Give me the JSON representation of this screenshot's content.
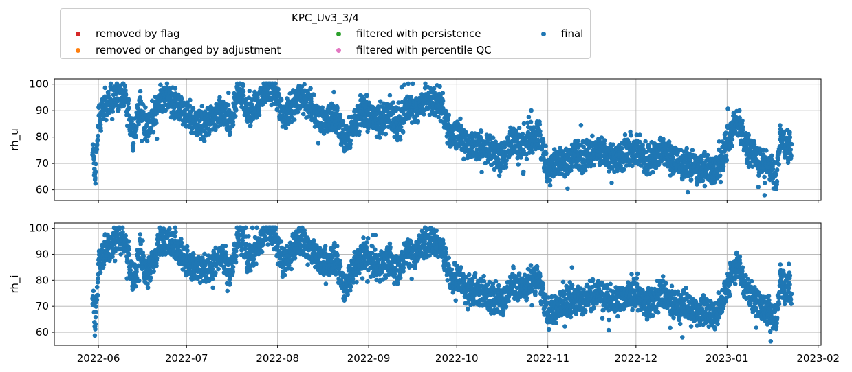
{
  "legend": {
    "title": "KPC_Uv3_3/4",
    "items": [
      {
        "label": "removed by flag",
        "color": "#d62728"
      },
      {
        "label": "removed or changed by adjustment",
        "color": "#ff7f0e"
      },
      {
        "label": "filtered with persistence",
        "color": "#2ca02c"
      },
      {
        "label": "filtered with percentile QC",
        "color": "#e377c2"
      },
      {
        "label": "final",
        "color": "#1f77b4"
      }
    ]
  },
  "chart_data": {
    "type": "scatter",
    "title": "KPC_Uv3_3/4",
    "x_ticks": [
      "2022-06",
      "2022-07",
      "2022-08",
      "2022-09",
      "2022-10",
      "2022-11",
      "2022-12",
      "2023-01",
      "2023-02"
    ],
    "x_range": [
      "2022-05-17",
      "2023-02-02"
    ],
    "grid": true,
    "legend_position": "top",
    "series_color": "#1f77b4",
    "panels": [
      {
        "ylabel": "rh_u",
        "ylim": [
          56,
          102
        ],
        "yticks": [
          60,
          70,
          80,
          90,
          100
        ],
        "series_name": "final",
        "anchors": [
          [
            "2022-05-30",
            73
          ],
          [
            "2022-05-31",
            66
          ],
          [
            "2022-06-01",
            86
          ],
          [
            "2022-06-03",
            92
          ],
          [
            "2022-06-05",
            93
          ],
          [
            "2022-06-08",
            96
          ],
          [
            "2022-06-10",
            95
          ],
          [
            "2022-06-13",
            80
          ],
          [
            "2022-06-15",
            92
          ],
          [
            "2022-06-17",
            83
          ],
          [
            "2022-06-19",
            86
          ],
          [
            "2022-06-22",
            94
          ],
          [
            "2022-06-25",
            95
          ],
          [
            "2022-06-28",
            92
          ],
          [
            "2022-07-01",
            88
          ],
          [
            "2022-07-04",
            86
          ],
          [
            "2022-07-07",
            85
          ],
          [
            "2022-07-10",
            87
          ],
          [
            "2022-07-13",
            90
          ],
          [
            "2022-07-16",
            84
          ],
          [
            "2022-07-19",
            99
          ],
          [
            "2022-07-22",
            88
          ],
          [
            "2022-07-25",
            92
          ],
          [
            "2022-07-28",
            99
          ],
          [
            "2022-07-31",
            98
          ],
          [
            "2022-08-03",
            87
          ],
          [
            "2022-08-06",
            92
          ],
          [
            "2022-08-09",
            96
          ],
          [
            "2022-08-12",
            92
          ],
          [
            "2022-08-15",
            88
          ],
          [
            "2022-08-18",
            86
          ],
          [
            "2022-08-21",
            88
          ],
          [
            "2022-08-24",
            78
          ],
          [
            "2022-08-27",
            85
          ],
          [
            "2022-08-30",
            90
          ],
          [
            "2022-09-02",
            88
          ],
          [
            "2022-09-05",
            86
          ],
          [
            "2022-09-08",
            89
          ],
          [
            "2022-09-11",
            84
          ],
          [
            "2022-09-14",
            92
          ],
          [
            "2022-09-17",
            90
          ],
          [
            "2022-09-20",
            94
          ],
          [
            "2022-09-23",
            95
          ],
          [
            "2022-09-26",
            92
          ],
          [
            "2022-09-29",
            80
          ],
          [
            "2022-10-02",
            82
          ],
          [
            "2022-10-05",
            76
          ],
          [
            "2022-10-08",
            77
          ],
          [
            "2022-10-11",
            75
          ],
          [
            "2022-10-14",
            74
          ],
          [
            "2022-10-17",
            72
          ],
          [
            "2022-10-20",
            80
          ],
          [
            "2022-10-23",
            76
          ],
          [
            "2022-10-26",
            80
          ],
          [
            "2022-10-29",
            81
          ],
          [
            "2022-11-01",
            68
          ],
          [
            "2022-11-04",
            70
          ],
          [
            "2022-11-07",
            71
          ],
          [
            "2022-11-10",
            73
          ],
          [
            "2022-11-13",
            72
          ],
          [
            "2022-11-16",
            74
          ],
          [
            "2022-11-19",
            75
          ],
          [
            "2022-11-22",
            72
          ],
          [
            "2022-11-25",
            73
          ],
          [
            "2022-11-28",
            74
          ],
          [
            "2022-12-01",
            75
          ],
          [
            "2022-12-04",
            72
          ],
          [
            "2022-12-07",
            72
          ],
          [
            "2022-12-10",
            75
          ],
          [
            "2022-12-13",
            72
          ],
          [
            "2022-12-16",
            70
          ],
          [
            "2022-12-19",
            70
          ],
          [
            "2022-12-22",
            68
          ],
          [
            "2022-12-25",
            69
          ],
          [
            "2022-12-28",
            66
          ],
          [
            "2022-12-31",
            74
          ],
          [
            "2023-01-03",
            84
          ],
          [
            "2023-01-05",
            86
          ],
          [
            "2023-01-07",
            77
          ],
          [
            "2023-01-10",
            73
          ],
          [
            "2023-01-13",
            70
          ],
          [
            "2023-01-16",
            68
          ],
          [
            "2023-01-18",
            65
          ],
          [
            "2023-01-19",
            81
          ],
          [
            "2023-01-21",
            76
          ],
          [
            "2023-01-23",
            77
          ]
        ]
      },
      {
        "ylabel": "rh_i",
        "ylim": [
          55,
          102
        ],
        "yticks": [
          60,
          70,
          80,
          90,
          100
        ],
        "series_name": "final",
        "anchors": [
          [
            "2022-05-30",
            73
          ],
          [
            "2022-05-31",
            62
          ],
          [
            "2022-06-01",
            86
          ],
          [
            "2022-06-03",
            92
          ],
          [
            "2022-06-05",
            93
          ],
          [
            "2022-06-08",
            96
          ],
          [
            "2022-06-10",
            95
          ],
          [
            "2022-06-13",
            79
          ],
          [
            "2022-06-15",
            92
          ],
          [
            "2022-06-17",
            82
          ],
          [
            "2022-06-19",
            86
          ],
          [
            "2022-06-22",
            94
          ],
          [
            "2022-06-25",
            95
          ],
          [
            "2022-06-28",
            92
          ],
          [
            "2022-07-01",
            87
          ],
          [
            "2022-07-04",
            85
          ],
          [
            "2022-07-07",
            84
          ],
          [
            "2022-07-10",
            86
          ],
          [
            "2022-07-13",
            90
          ],
          [
            "2022-07-16",
            83
          ],
          [
            "2022-07-19",
            99
          ],
          [
            "2022-07-22",
            88
          ],
          [
            "2022-07-25",
            92
          ],
          [
            "2022-07-28",
            99
          ],
          [
            "2022-07-31",
            98
          ],
          [
            "2022-08-03",
            86
          ],
          [
            "2022-08-06",
            92
          ],
          [
            "2022-08-09",
            96
          ],
          [
            "2022-08-12",
            92
          ],
          [
            "2022-08-15",
            88
          ],
          [
            "2022-08-18",
            86
          ],
          [
            "2022-08-21",
            88
          ],
          [
            "2022-08-24",
            77
          ],
          [
            "2022-08-27",
            85
          ],
          [
            "2022-08-30",
            90
          ],
          [
            "2022-09-02",
            88
          ],
          [
            "2022-09-05",
            85
          ],
          [
            "2022-09-08",
            89
          ],
          [
            "2022-09-11",
            83
          ],
          [
            "2022-09-14",
            92
          ],
          [
            "2022-09-17",
            90
          ],
          [
            "2022-09-20",
            94
          ],
          [
            "2022-09-23",
            95
          ],
          [
            "2022-09-26",
            92
          ],
          [
            "2022-09-29",
            80
          ],
          [
            "2022-10-02",
            82
          ],
          [
            "2022-10-05",
            75
          ],
          [
            "2022-10-08",
            76
          ],
          [
            "2022-10-11",
            74
          ],
          [
            "2022-10-14",
            73
          ],
          [
            "2022-10-17",
            71
          ],
          [
            "2022-10-20",
            80
          ],
          [
            "2022-10-23",
            76
          ],
          [
            "2022-10-26",
            80
          ],
          [
            "2022-10-29",
            80
          ],
          [
            "2022-11-01",
            67
          ],
          [
            "2022-11-04",
            69
          ],
          [
            "2022-11-07",
            71
          ],
          [
            "2022-11-10",
            73
          ],
          [
            "2022-11-13",
            72
          ],
          [
            "2022-11-16",
            74
          ],
          [
            "2022-11-19",
            75
          ],
          [
            "2022-11-22",
            72
          ],
          [
            "2022-11-25",
            73
          ],
          [
            "2022-11-28",
            74
          ],
          [
            "2022-12-01",
            75
          ],
          [
            "2022-12-04",
            71
          ],
          [
            "2022-12-07",
            72
          ],
          [
            "2022-12-10",
            75
          ],
          [
            "2022-12-13",
            71
          ],
          [
            "2022-12-16",
            70
          ],
          [
            "2022-12-19",
            70
          ],
          [
            "2022-12-22",
            68
          ],
          [
            "2022-12-25",
            68
          ],
          [
            "2022-12-28",
            66
          ],
          [
            "2022-12-31",
            74
          ],
          [
            "2023-01-03",
            84
          ],
          [
            "2023-01-05",
            86
          ],
          [
            "2023-01-07",
            77
          ],
          [
            "2023-01-10",
            73
          ],
          [
            "2023-01-13",
            70
          ],
          [
            "2023-01-16",
            67
          ],
          [
            "2023-01-18",
            65
          ],
          [
            "2023-01-19",
            81
          ],
          [
            "2023-01-21",
            76
          ],
          [
            "2023-01-23",
            77
          ]
        ]
      }
    ]
  }
}
